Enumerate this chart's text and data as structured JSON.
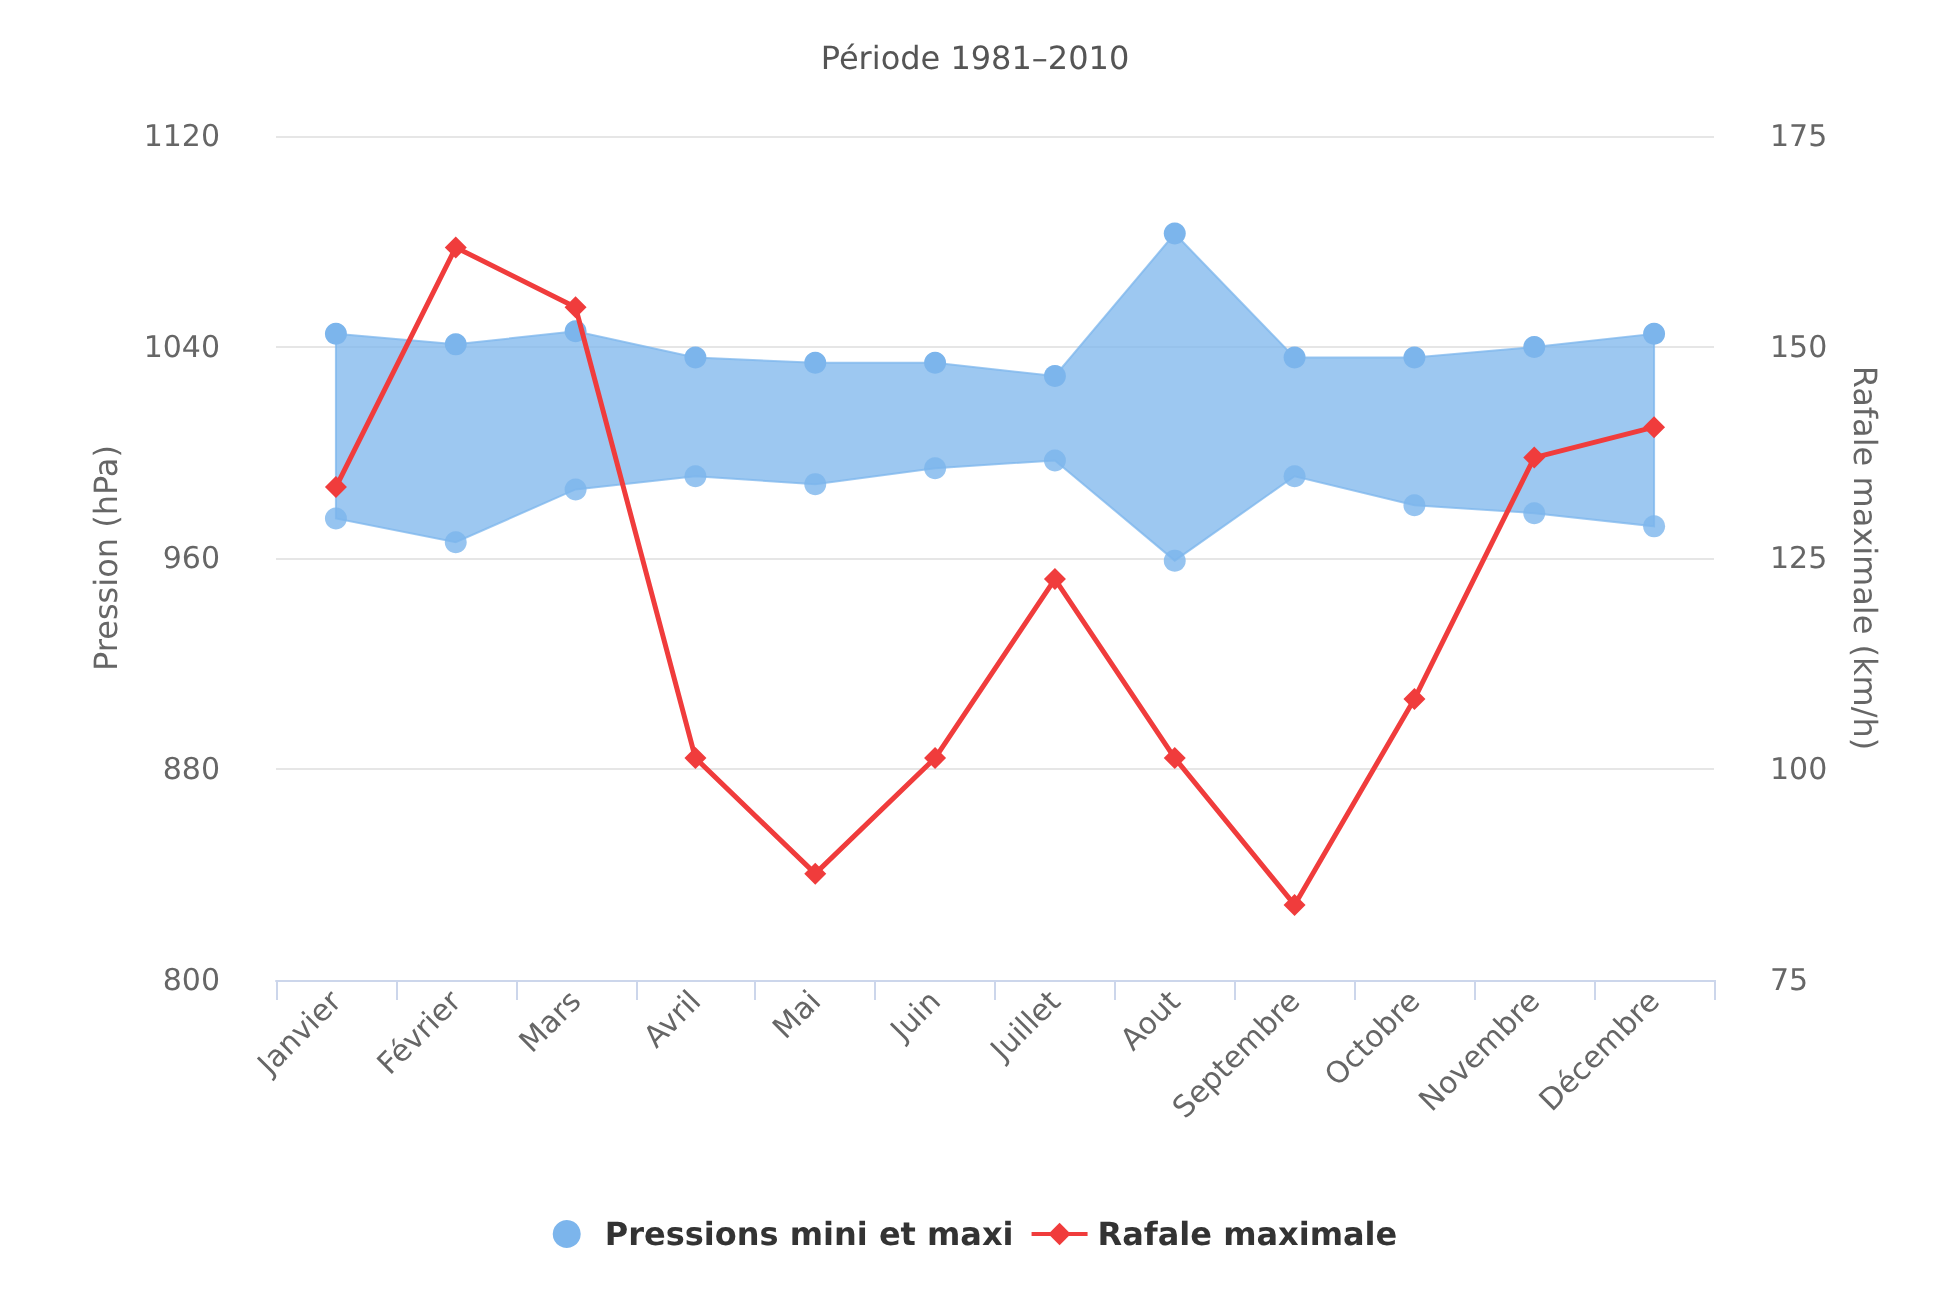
{
  "chart_data": {
    "type": "area",
    "title": "Période 1981–2010",
    "categories": [
      "Janvier",
      "Février",
      "Mars",
      "Avril",
      "Mai",
      "Juin",
      "Juillet",
      "Aout",
      "Septembre",
      "Octobre",
      "Novembre",
      "Décembre"
    ],
    "series": [
      {
        "name": "Pressions mini et maxi",
        "type": "area",
        "color": "#7cb5ec",
        "marker": "circle",
        "values": [
          1045,
          1041,
          1046,
          1036,
          1034,
          1034,
          1029,
          1083,
          1036,
          1036,
          1040,
          1045
        ]
      },
      {
        "type": "scatter",
        "color": "#7cb5ec",
        "marker": "circle",
        "values": [
          975,
          966,
          986,
          991,
          988,
          994,
          997,
          959,
          991,
          980,
          977,
          972
        ]
      },
      {
        "name": "Rafale maximale",
        "type": "line",
        "axis": "y2",
        "color": "#f03c3c",
        "marker": "diamond",
        "values": [
          133.4,
          161.8,
          154.7,
          101.3,
          87.6,
          101.3,
          122.5,
          101.3,
          83.9,
          108.3,
          136.9,
          140.5
        ]
      }
    ],
    "ylabel": "Pression (hPa)",
    "y2label": "Rafale maximale (km/h)",
    "ylim": [
      800,
      1120
    ],
    "yticks": [
      800,
      880,
      960,
      1040,
      1120
    ],
    "y2lim": [
      75,
      175
    ],
    "y2ticks": [
      75,
      100,
      125,
      150,
      175
    ],
    "grid": "y",
    "legend": "bottom"
  }
}
